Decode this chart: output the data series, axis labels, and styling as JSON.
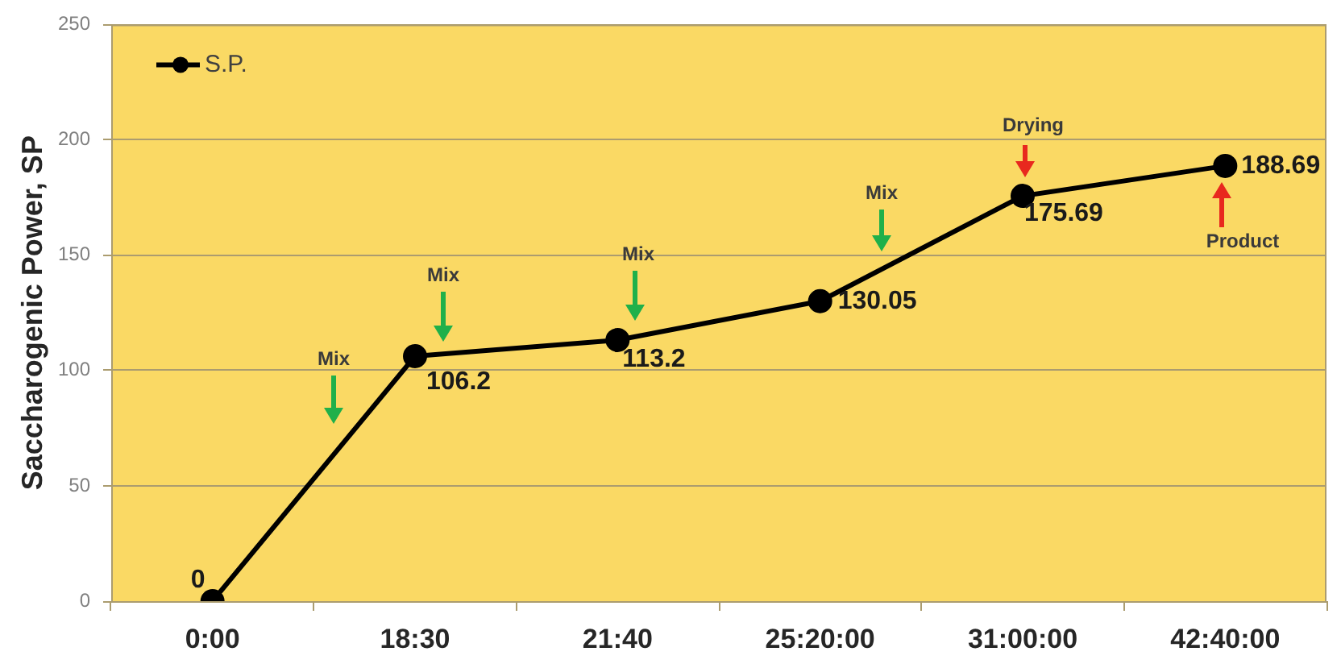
{
  "chart_data": {
    "type": "line",
    "ylabel": "Saccharogenic Power, SP",
    "categories": [
      "0:00",
      "18:30",
      "21:40",
      "25:20:00",
      "31:00:00",
      "42:40:00"
    ],
    "series": [
      {
        "name": "S.P.",
        "color": "#000000",
        "values": [
          0,
          106.2,
          113.2,
          130.05,
          175.69,
          188.69
        ]
      }
    ],
    "ylim": [
      0,
      250
    ],
    "yticks": [
      0,
      50,
      100,
      150,
      200,
      250
    ],
    "grid": "y",
    "legend": "top left",
    "marker": "circle",
    "line_style": "solid",
    "data_labels": true,
    "annotations": [
      "Mix",
      "Mix",
      "Mix",
      "Mix",
      "Drying",
      "Product"
    ]
  }
}
